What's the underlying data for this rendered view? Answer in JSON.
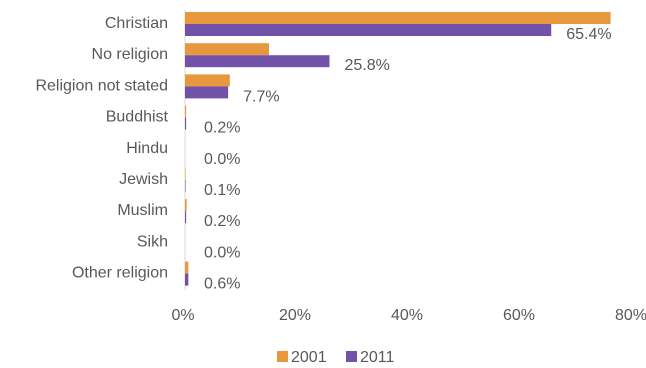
{
  "chart_data": {
    "type": "bar",
    "orientation": "horizontal",
    "title": "",
    "xlabel": "",
    "ylabel": "",
    "categories": [
      "Christian",
      "No religion",
      "Religion not stated",
      "Buddhist",
      "Hindu",
      "Jewish",
      "Muslim",
      "Sikh",
      "Other religion"
    ],
    "series": [
      {
        "name": "2001",
        "color": "#E8983C",
        "values": [
          76.0,
          15.0,
          8.0,
          0.2,
          0.0,
          0.1,
          0.3,
          0.0,
          0.6
        ]
      },
      {
        "name": "2011",
        "color": "#7251A8",
        "values": [
          65.4,
          25.8,
          7.7,
          0.2,
          0.0,
          0.1,
          0.2,
          0.0,
          0.6
        ],
        "data_labels": [
          "65.4%",
          "25.8%",
          "7.7%",
          "0.2%",
          "0.0%",
          "0.1%",
          "0.2%",
          "0.0%",
          "0.6%"
        ]
      }
    ],
    "xlim": [
      0,
      80
    ],
    "xticks": [
      0,
      20,
      40,
      60,
      80
    ],
    "xtick_labels": [
      "0%",
      "20%",
      "40%",
      "60%",
      "80%"
    ],
    "grid": false,
    "legend": {
      "position": "bottom-center",
      "entries": [
        "2001",
        "2011"
      ]
    }
  }
}
